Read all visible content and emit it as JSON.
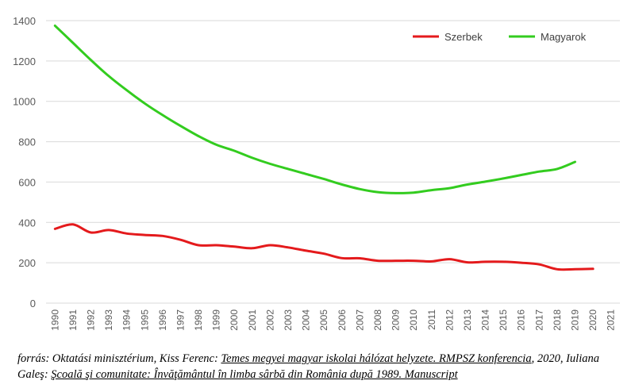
{
  "chart_data": {
    "type": "line",
    "title": "",
    "xlabel": "",
    "ylabel": "",
    "ylim": [
      0,
      1400
    ],
    "yticks": [
      0,
      200,
      400,
      600,
      800,
      1000,
      1200,
      1400
    ],
    "grid": "horizontal",
    "legend_position": "top-right",
    "categories": [
      "1990",
      "1991",
      "1992",
      "1993",
      "1994",
      "1995",
      "1996",
      "1997",
      "1998",
      "1999",
      "2000",
      "2001",
      "2002",
      "2003",
      "2004",
      "2005",
      "2006",
      "2007",
      "2008",
      "2009",
      "2010",
      "2011",
      "2012",
      "2013",
      "2014",
      "2015",
      "2016",
      "2017",
      "2018",
      "2019",
      "2020",
      "2021"
    ],
    "series": [
      {
        "name": "Szerbek",
        "color": "#e41a1c",
        "values": [
          368,
          390,
          350,
          362,
          345,
          338,
          333,
          314,
          287,
          287,
          280,
          272,
          287,
          276,
          260,
          245,
          223,
          222,
          210,
          210,
          210,
          207,
          218,
          202,
          205,
          205,
          200,
          192,
          168,
          168,
          170,
          null
        ]
      },
      {
        "name": "Magyarok",
        "color": "#33cc1f",
        "values": [
          1375,
          1290,
          1205,
          1125,
          1055,
          990,
          932,
          878,
          828,
          785,
          755,
          720,
          690,
          665,
          640,
          615,
          588,
          565,
          550,
          545,
          548,
          560,
          570,
          588,
          602,
          618,
          635,
          652,
          665,
          700,
          null,
          null
        ]
      }
    ]
  },
  "caption": {
    "prefix": "forrás: Oktatási minisztérium, Kiss Ferenc: ",
    "title1": "Temes megyei magyar iskolai hálózat helyzete. RMPSZ konferencia",
    "middle": ", 2020, Iuliana Galeş: ",
    "title2": "Şcoală şi comunitate: Învăţământul în limba sârbă din România după 1989. Manuscript"
  }
}
